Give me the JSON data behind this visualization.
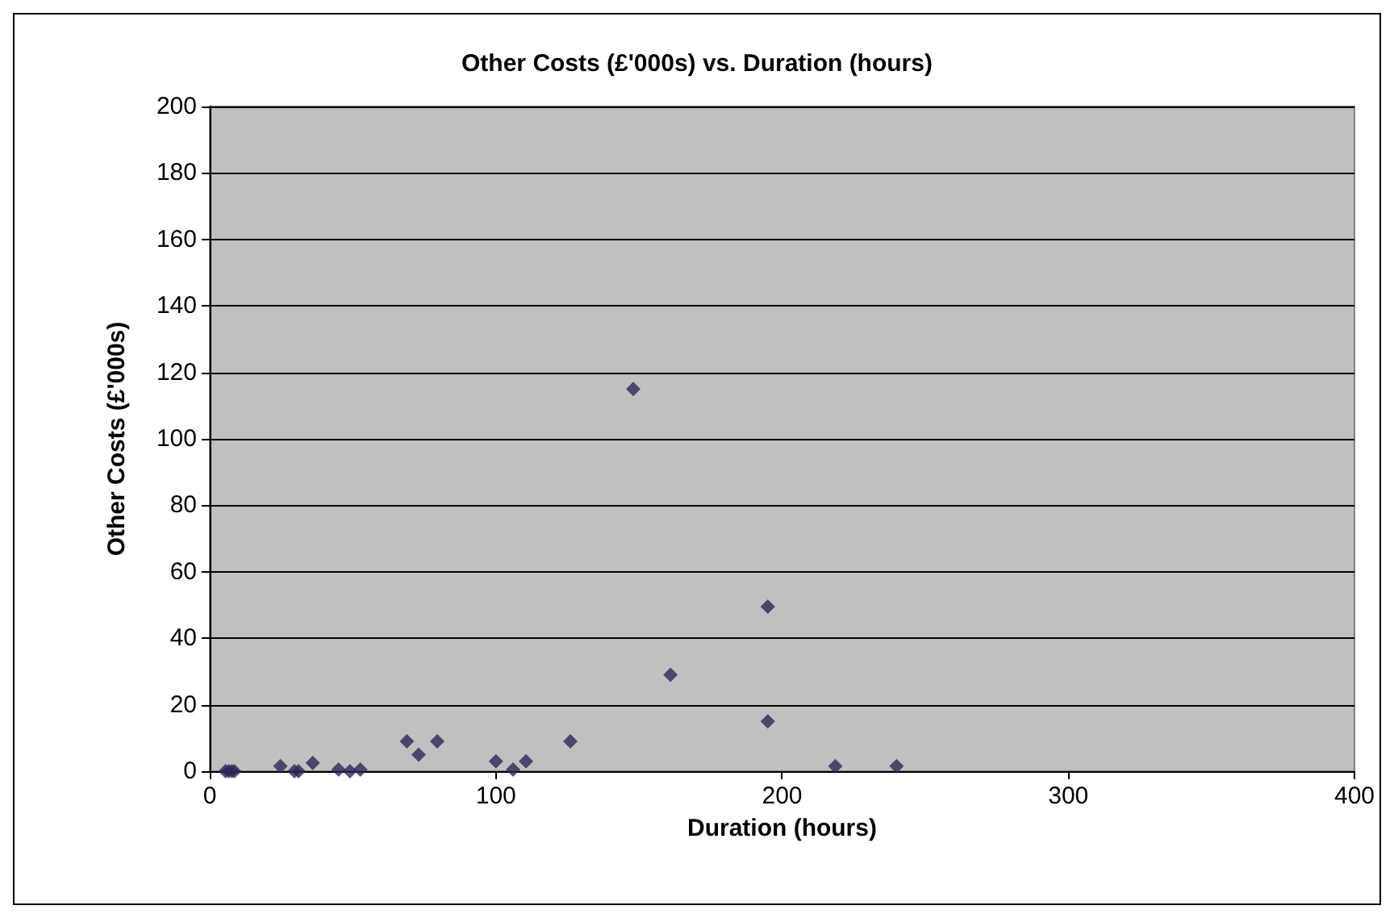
{
  "chart_data": {
    "type": "scatter",
    "title": "Other Costs (£'000s) vs. Duration (hours)",
    "xlabel": "Duration (hours)",
    "ylabel": "Other Costs (£'000s)",
    "x": [
      5.5,
      6.6,
      7.7,
      8.6,
      24.7,
      29.6,
      31,
      36,
      45,
      49,
      52.6,
      68.9,
      73,
      79.5,
      100,
      106,
      110.5,
      126,
      148,
      161,
      195,
      195,
      218.6,
      240
    ],
    "series": [
      {
        "color": "#2b2857",
        "values": [
          0,
          0,
          0,
          0,
          1.5,
          0,
          0,
          2.5,
          0.5,
          0,
          0.5,
          9,
          5,
          9,
          3,
          0.5,
          3,
          9,
          115,
          29,
          49.5,
          15,
          1.5,
          1.5
        ]
      }
    ],
    "xlim": [
      0,
      400
    ],
    "xticks": [
      0,
      100,
      200,
      300,
      400
    ],
    "ylim": [
      0,
      200
    ],
    "yticks": [
      0,
      20,
      40,
      60,
      80,
      100,
      120,
      140,
      160,
      180,
      200
    ],
    "grid": "y",
    "marker": "diamond"
  }
}
